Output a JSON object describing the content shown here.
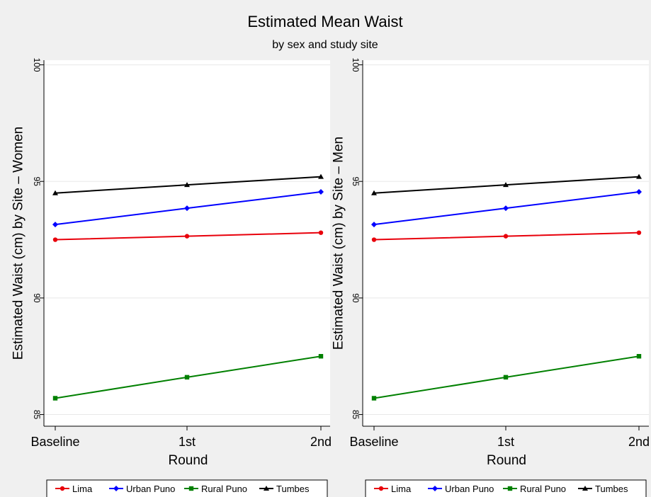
{
  "figure": {
    "title": "Estimated Mean Waist",
    "subtitle": "by sex and study site"
  },
  "chart_data": [
    {
      "type": "line",
      "ylabel": "Estimated Waist (cm) by Site – Women",
      "xlabel": "Round",
      "categories": [
        "Baseline",
        "1st",
        "2nd"
      ],
      "ylim": [
        84.5,
        100.2
      ],
      "yticks": [
        85,
        90,
        95,
        100
      ],
      "grid": true,
      "legend_position": "bottom",
      "series": [
        {
          "name": "Lima",
          "color": "#e8000b",
          "marker": "circle",
          "values": [
            92.5,
            92.65,
            92.8
          ]
        },
        {
          "name": "Urban Puno",
          "color": "#0000ff",
          "marker": "diamond",
          "values": [
            93.15,
            93.85,
            94.55
          ]
        },
        {
          "name": "Rural Puno",
          "color": "#008000",
          "marker": "square",
          "values": [
            85.7,
            86.6,
            87.5
          ]
        },
        {
          "name": "Tumbes",
          "color": "#000000",
          "marker": "triangle",
          "values": [
            94.5,
            94.85,
            95.2
          ]
        }
      ]
    },
    {
      "type": "line",
      "ylabel": "Estimated Waist (cm) by Site – Men",
      "xlabel": "Round",
      "categories": [
        "Baseline",
        "1st",
        "2nd"
      ],
      "ylim": [
        84.5,
        100.2
      ],
      "yticks": [
        85,
        90,
        95,
        100
      ],
      "grid": true,
      "legend_position": "bottom",
      "series": [
        {
          "name": "Lima",
          "color": "#e8000b",
          "marker": "circle",
          "values": [
            92.5,
            92.65,
            92.8
          ]
        },
        {
          "name": "Urban Puno",
          "color": "#0000ff",
          "marker": "diamond",
          "values": [
            93.15,
            93.85,
            94.55
          ]
        },
        {
          "name": "Rural Puno",
          "color": "#008000",
          "marker": "square",
          "values": [
            85.7,
            86.6,
            87.5
          ]
        },
        {
          "name": "Tumbes",
          "color": "#000000",
          "marker": "triangle",
          "values": [
            94.5,
            94.85,
            95.2
          ]
        }
      ]
    }
  ]
}
